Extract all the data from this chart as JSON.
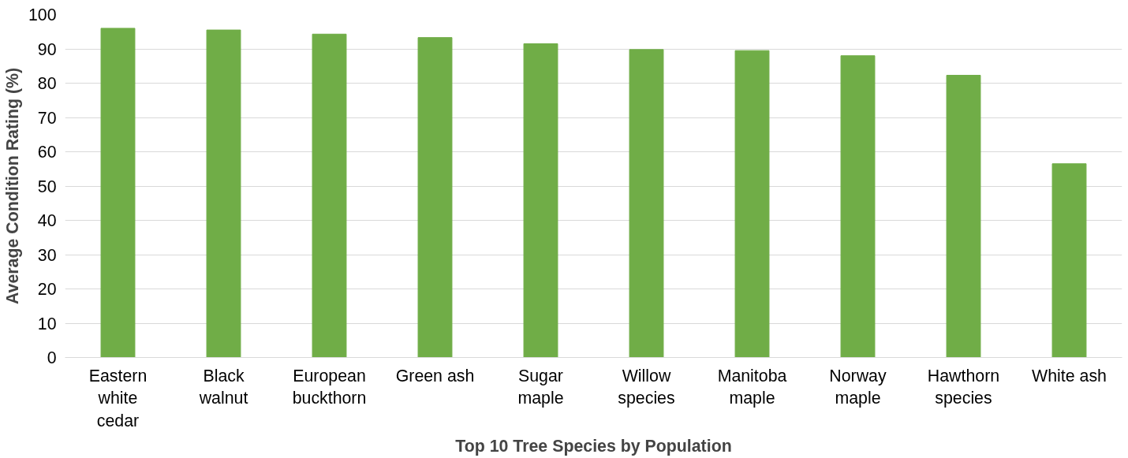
{
  "chart_data": {
    "type": "bar",
    "xlabel": "Top 10 Tree Species by Population",
    "ylabel": "Average Condition Rating (%)",
    "categories": [
      "Eastern white cedar",
      "Black walnut",
      "European buckthorn",
      "Green ash",
      "Sugar maple",
      "Willow species",
      "Manitoba maple",
      "Norway maple",
      "Hawthorn species",
      "White ash"
    ],
    "values": [
      96.0,
      95.5,
      94.3,
      93.3,
      91.5,
      89.8,
      89.5,
      88.0,
      82.3,
      56.5
    ],
    "color": "#70ad47",
    "ylim": [
      0,
      100
    ],
    "yticks": [
      0,
      10,
      20,
      30,
      40,
      50,
      60,
      70,
      80,
      90,
      100
    ],
    "grid": "y"
  }
}
